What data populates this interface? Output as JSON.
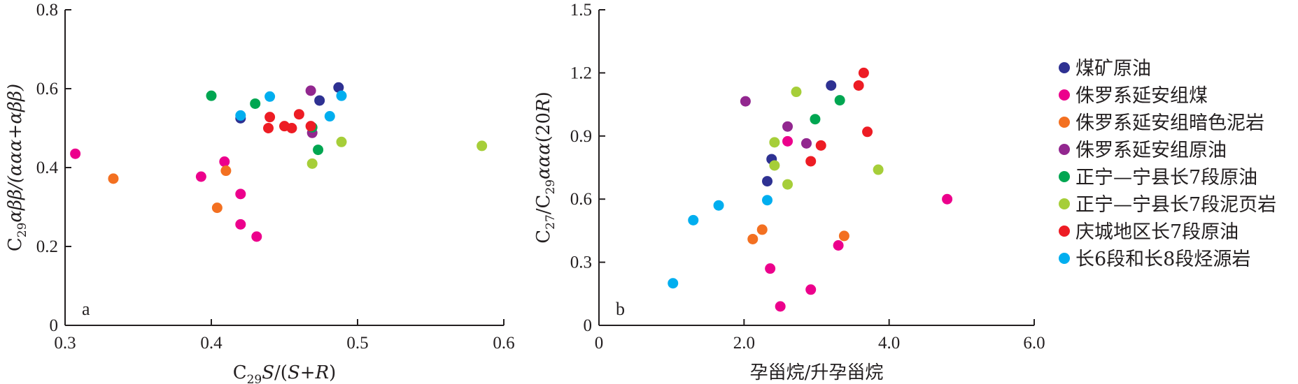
{
  "chart_data": [
    {
      "type": "scatter",
      "panel_label": "a",
      "xlabel": "C29S/(S+R)",
      "ylabel": "C29αββ/(ααα+αββ)",
      "xlim": [
        0.3,
        0.6
      ],
      "ylim": [
        0,
        0.8
      ],
      "xticks": [
        "0.3",
        "0.4",
        "0.5",
        "0.6"
      ],
      "yticks": [
        "0",
        "0.2",
        "0.4",
        "0.6",
        "0.8"
      ],
      "series": [
        {
          "name": "煤矿原油",
          "points": [
            [
              0.42,
              0.525
            ],
            [
              0.474,
              0.57
            ],
            [
              0.487,
              0.603
            ]
          ]
        },
        {
          "name": "侏罗系延安组煤",
          "points": [
            [
              0.307,
              0.435
            ],
            [
              0.393,
              0.377
            ],
            [
              0.409,
              0.415
            ],
            [
              0.42,
              0.333
            ],
            [
              0.42,
              0.256
            ],
            [
              0.431,
              0.225
            ]
          ]
        },
        {
          "name": "侏罗系延安组暗色泥岩",
          "points": [
            [
              0.333,
              0.372
            ],
            [
              0.41,
              0.392
            ],
            [
              0.404,
              0.298
            ]
          ]
        },
        {
          "name": "侏罗系延安组原油",
          "points": [
            [
              0.468,
              0.595
            ],
            [
              0.469,
              0.488
            ]
          ]
        },
        {
          "name": "正宁—宁县长7段原油",
          "points": [
            [
              0.4,
              0.582
            ],
            [
              0.43,
              0.562
            ],
            [
              0.469,
              0.502
            ],
            [
              0.473,
              0.445
            ]
          ]
        },
        {
          "name": "正宁—宁县长7段泥页岩",
          "points": [
            [
              0.469,
              0.41
            ],
            [
              0.489,
              0.465
            ],
            [
              0.585,
              0.455
            ]
          ]
        },
        {
          "name": "庆城地区长7段原油",
          "points": [
            [
              0.44,
              0.528
            ],
            [
              0.439,
              0.5
            ],
            [
              0.45,
              0.505
            ],
            [
              0.455,
              0.5
            ],
            [
              0.46,
              0.535
            ],
            [
              0.468,
              0.505
            ]
          ]
        },
        {
          "name": "长6段和长8段烃源岩",
          "points": [
            [
              0.42,
              0.532
            ],
            [
              0.44,
              0.58
            ],
            [
              0.481,
              0.53
            ],
            [
              0.489,
              0.582
            ]
          ]
        }
      ]
    },
    {
      "type": "scatter",
      "panel_label": "b",
      "xlabel": "孕甾烷/升孕甾烷",
      "ylabel": "C27/C29ααα(20R)",
      "xlim": [
        0,
        6.0
      ],
      "ylim": [
        0,
        1.5
      ],
      "xticks": [
        "0",
        "2.0",
        "4.0",
        "6.0"
      ],
      "yticks": [
        "0",
        "0.3",
        "0.6",
        "0.9",
        "1.2",
        "1.5"
      ],
      "series": [
        {
          "name": "煤矿原油",
          "points": [
            [
              2.32,
              0.685
            ],
            [
              2.38,
              0.79
            ],
            [
              3.2,
              1.14
            ]
          ]
        },
        {
          "name": "侏罗系延安组煤",
          "points": [
            [
              2.5,
              0.09
            ],
            [
              2.92,
              0.17
            ],
            [
              2.36,
              0.27
            ],
            [
              3.3,
              0.38
            ],
            [
              2.6,
              0.875
            ],
            [
              4.8,
              0.6
            ]
          ]
        },
        {
          "name": "侏罗系延安组暗色泥岩",
          "points": [
            [
              2.12,
              0.41
            ],
            [
              2.25,
              0.455
            ],
            [
              3.38,
              0.425
            ]
          ]
        },
        {
          "name": "侏罗系延安组原油",
          "points": [
            [
              2.02,
              1.065
            ],
            [
              2.6,
              0.945
            ],
            [
              2.86,
              0.865
            ]
          ]
        },
        {
          "name": "正宁—宁县长7段原油",
          "points": [
            [
              2.98,
              0.98
            ],
            [
              3.32,
              1.07
            ]
          ]
        },
        {
          "name": "正宁—宁县长7段泥页岩",
          "points": [
            [
              2.72,
              1.11
            ],
            [
              2.42,
              0.87
            ],
            [
              2.42,
              0.76
            ],
            [
              2.6,
              0.67
            ],
            [
              3.85,
              0.74
            ]
          ]
        },
        {
          "name": "庆城地区长7段原油",
          "points": [
            [
              3.65,
              1.2
            ],
            [
              3.58,
              1.14
            ],
            [
              3.7,
              0.92
            ],
            [
              3.06,
              0.855
            ],
            [
              2.92,
              0.78
            ]
          ]
        },
        {
          "name": "长6段和长8段烃源岩",
          "points": [
            [
              1.02,
              0.2
            ],
            [
              1.3,
              0.5
            ],
            [
              1.65,
              0.57
            ],
            [
              2.32,
              0.595
            ]
          ]
        }
      ]
    }
  ],
  "legend": [
    {
      "label": "煤矿原油",
      "color": "#2e3192"
    },
    {
      "label": "侏罗系延安组煤",
      "color": "#ec008c"
    },
    {
      "label": "侏罗系延安组暗色泥岩",
      "color": "#f37021"
    },
    {
      "label": "侏罗系延安组原油",
      "color": "#92278f"
    },
    {
      "label": "正宁—宁县长7段原油",
      "color": "#00a651"
    },
    {
      "label": "正宁—宁县长7段泥页岩",
      "color": "#a6ce39"
    },
    {
      "label": "庆城地区长7段原油",
      "color": "#ed1c24"
    },
    {
      "label": "长6段和长8段烃源岩",
      "color": "#00aeef"
    }
  ]
}
